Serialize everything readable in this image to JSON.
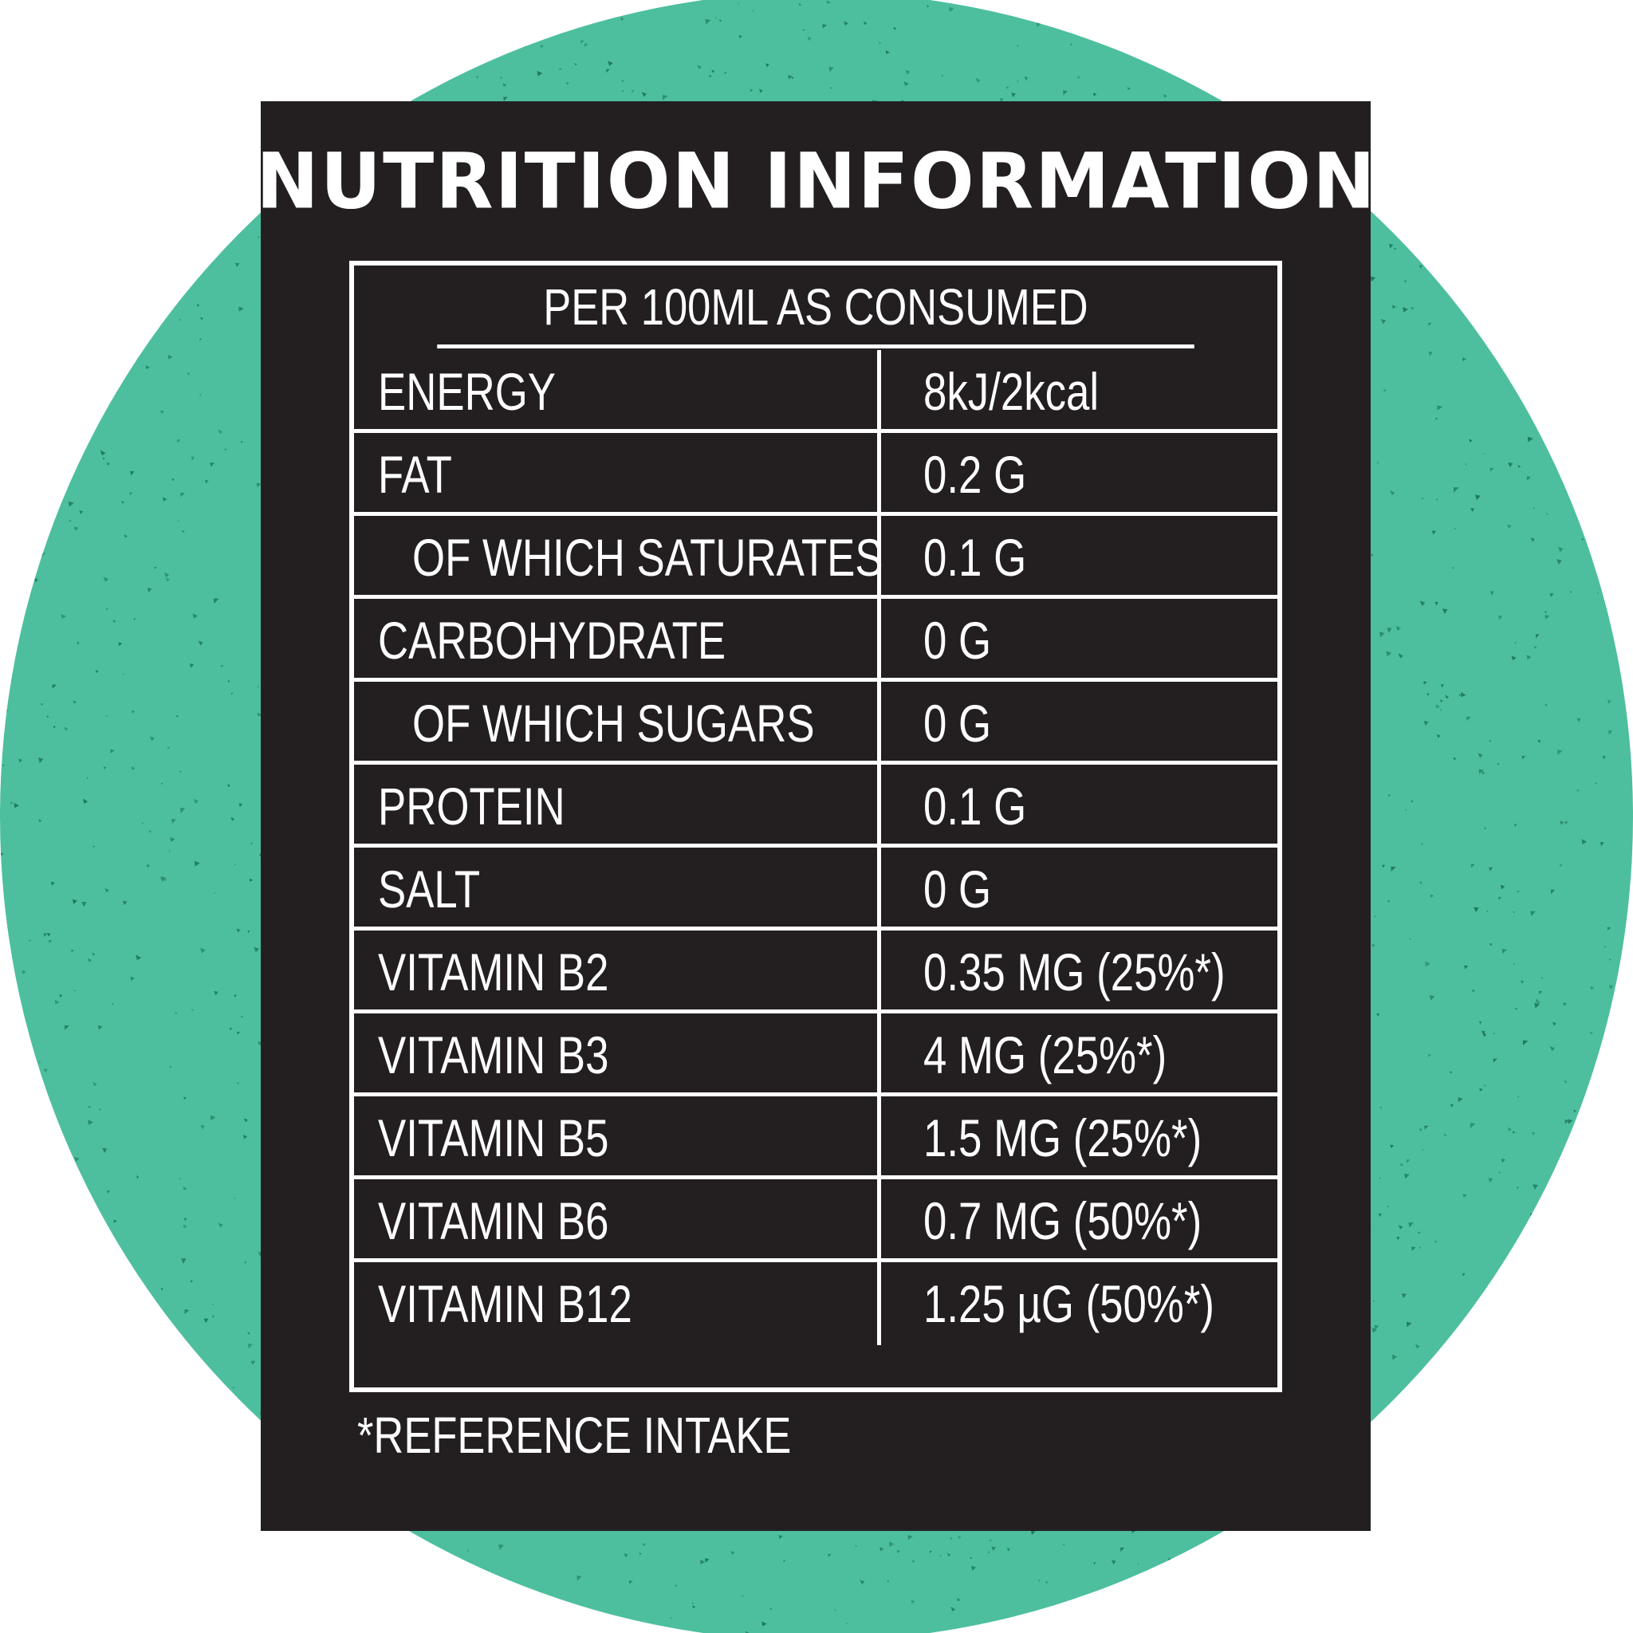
{
  "title": "NUTRITION INFORMATION",
  "table": {
    "header": "PER 100ML AS CONSUMED",
    "rows": [
      {
        "name": "ENERGY",
        "value": "8kJ/2kcal",
        "indent": false
      },
      {
        "name": "FAT",
        "value": "0.2 G",
        "indent": false
      },
      {
        "name": "OF WHICH SATURATES",
        "value": "0.1 G",
        "indent": true
      },
      {
        "name": "CARBOHYDRATE",
        "value": "0 G",
        "indent": false
      },
      {
        "name": "OF WHICH SUGARS",
        "value": "0 G",
        "indent": true
      },
      {
        "name": "PROTEIN",
        "value": "0.1 G",
        "indent": false
      },
      {
        "name": "SALT",
        "value": "0 G",
        "indent": false
      },
      {
        "name": "VITAMIN B2",
        "value": "0.35 MG (25%*)",
        "indent": false
      },
      {
        "name": "VITAMIN B3",
        "value": "4 MG (25%*)",
        "indent": false
      },
      {
        "name": "VITAMIN B5",
        "value": "1.5 MG (25%*)",
        "indent": false
      },
      {
        "name": "VITAMIN B6",
        "value": "0.7 MG (50%*)",
        "indent": false
      },
      {
        "name": "VITAMIN B12",
        "value": "1.25 µG (50%*)",
        "indent": false
      }
    ]
  },
  "footnote": "*REFERENCE INTAKE",
  "colors": {
    "background_circle": "#4dbf9e",
    "speckle": "#1e7a5c",
    "panel": "#231f20",
    "text": "#ffffff"
  }
}
